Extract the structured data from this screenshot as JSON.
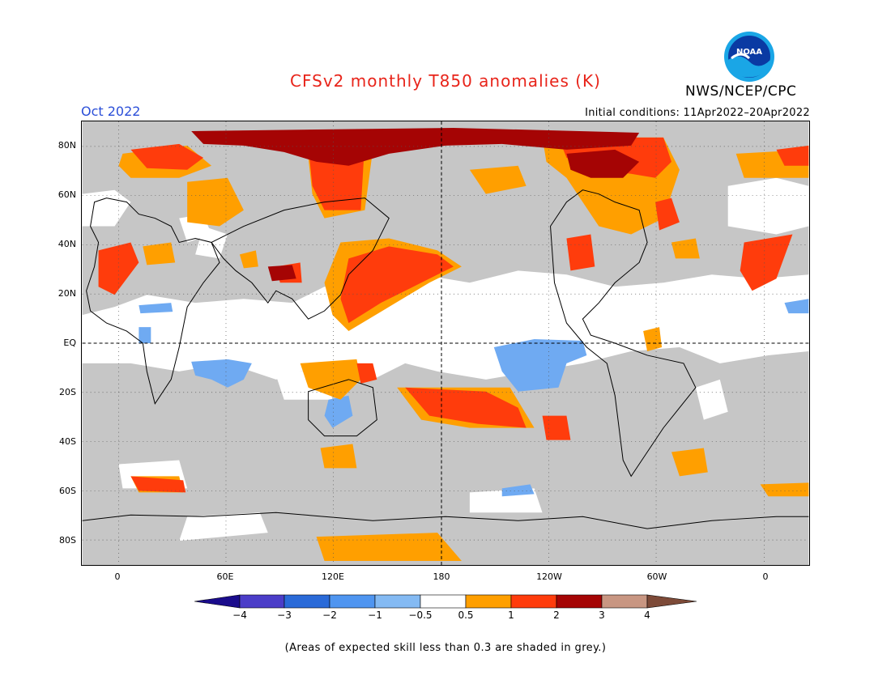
{
  "title": "CFSv2 monthly T850 anomalies (K)",
  "agency": "NWS/NCEP/CPC",
  "month": "Oct 2022",
  "initial_conditions": "Initial conditions: 11Apr2022–20Apr2022",
  "logo_text": "NOAA",
  "lat_labels": [
    "80N",
    "60N",
    "40N",
    "20N",
    "EQ",
    "20S",
    "40S",
    "60S",
    "80S"
  ],
  "lon_labels": [
    "0",
    "60E",
    "120E",
    "180",
    "120W",
    "60W",
    "0"
  ],
  "colorbar": {
    "labels": [
      "−4",
      "−3",
      "−2",
      "−1",
      "−0.5",
      "0.5",
      "1",
      "2",
      "3",
      "4"
    ],
    "colors": [
      "#1a0c8c",
      "#4b3dc8",
      "#2a6ad8",
      "#4f95f0",
      "#84baf3",
      "#ffffff",
      "#ff9f00",
      "#ff3c0c",
      "#a50404",
      "#c89682",
      "#7d4a38"
    ]
  },
  "footnote": "(Areas of expected skill less than 0.3 are shaded in grey.)",
  "colors": {
    "skill_grey": "#c6c6c6",
    "anom_blue": "#6faaf2",
    "anom_orange": "#ff9f00",
    "anom_red": "#ff3c0c",
    "anom_darkred": "#a50404"
  }
}
